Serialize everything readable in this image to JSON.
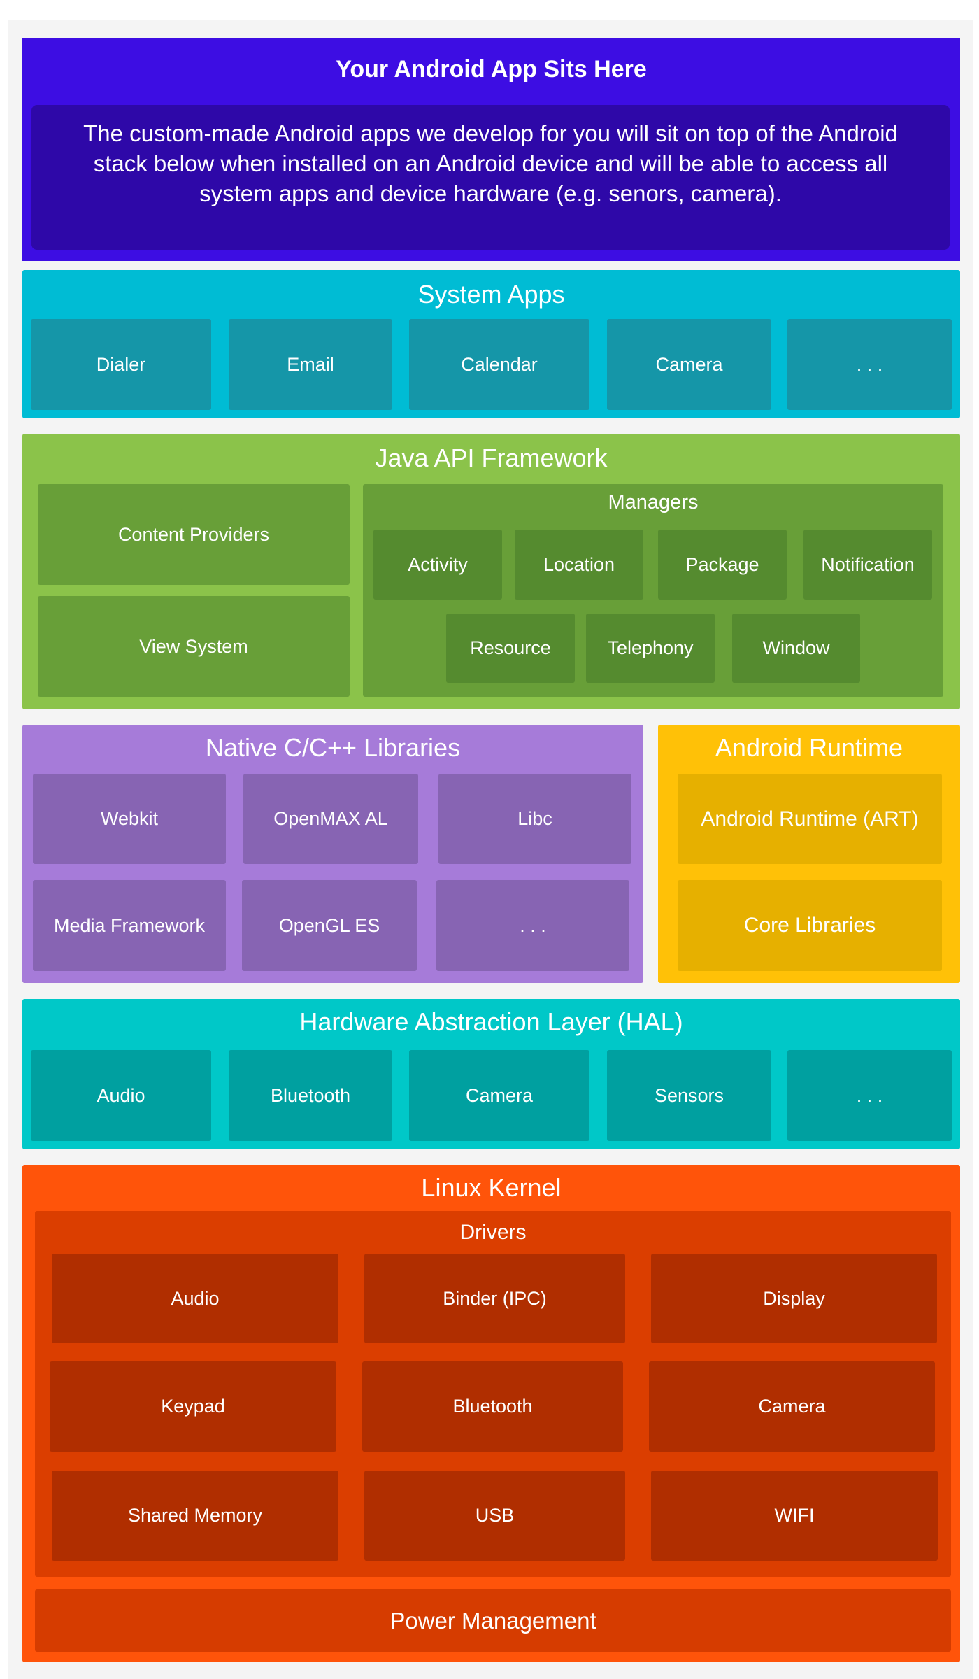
{
  "app_layer": {
    "title": "Your Android App Sits Here",
    "description": "The custom-made Android apps we develop for you will sit on top of the Android stack below when installed on an Android device and will be able to access all system apps and device hardware (e.g. senors, camera).",
    "color": "#3d0de3"
  },
  "system_apps": {
    "title": "System Apps",
    "items": [
      "Dialer",
      "Email",
      "Calendar",
      "Camera",
      ". . ."
    ],
    "color": "#00bcd4"
  },
  "java_api": {
    "title": "Java API Framework",
    "content_providers": "Content Providers",
    "view_system": "View System",
    "managers": {
      "title": "Managers",
      "items": [
        "Activity",
        "Location",
        "Package",
        "Notification",
        "Resource",
        "Telephony",
        "Window"
      ]
    },
    "color": "#8bc34a"
  },
  "native_libs": {
    "title": "Native C/C++ Libraries",
    "items": [
      "Webkit",
      "OpenMAX AL",
      "Libc",
      "Media Framework",
      "OpenGL ES",
      ". . ."
    ],
    "color": "#a67bd9"
  },
  "android_runtime": {
    "title": "Android Runtime",
    "items": [
      "Android Runtime (ART)",
      "Core Libraries"
    ],
    "color": "#ffc107"
  },
  "hal": {
    "title": "Hardware Abstraction Layer (HAL)",
    "items": [
      "Audio",
      "Bluetooth",
      "Camera",
      "Sensors",
      ". . ."
    ],
    "color": "#00c8c8"
  },
  "linux_kernel": {
    "title": "Linux Kernel",
    "drivers": {
      "title": "Drivers",
      "items": [
        "Audio",
        "Binder (IPC)",
        "Display",
        "Keypad",
        "Bluetooth",
        "Camera",
        "Shared Memory",
        "USB",
        "WIFI"
      ]
    },
    "power_management": "Power Management",
    "color": "#ff540a"
  }
}
